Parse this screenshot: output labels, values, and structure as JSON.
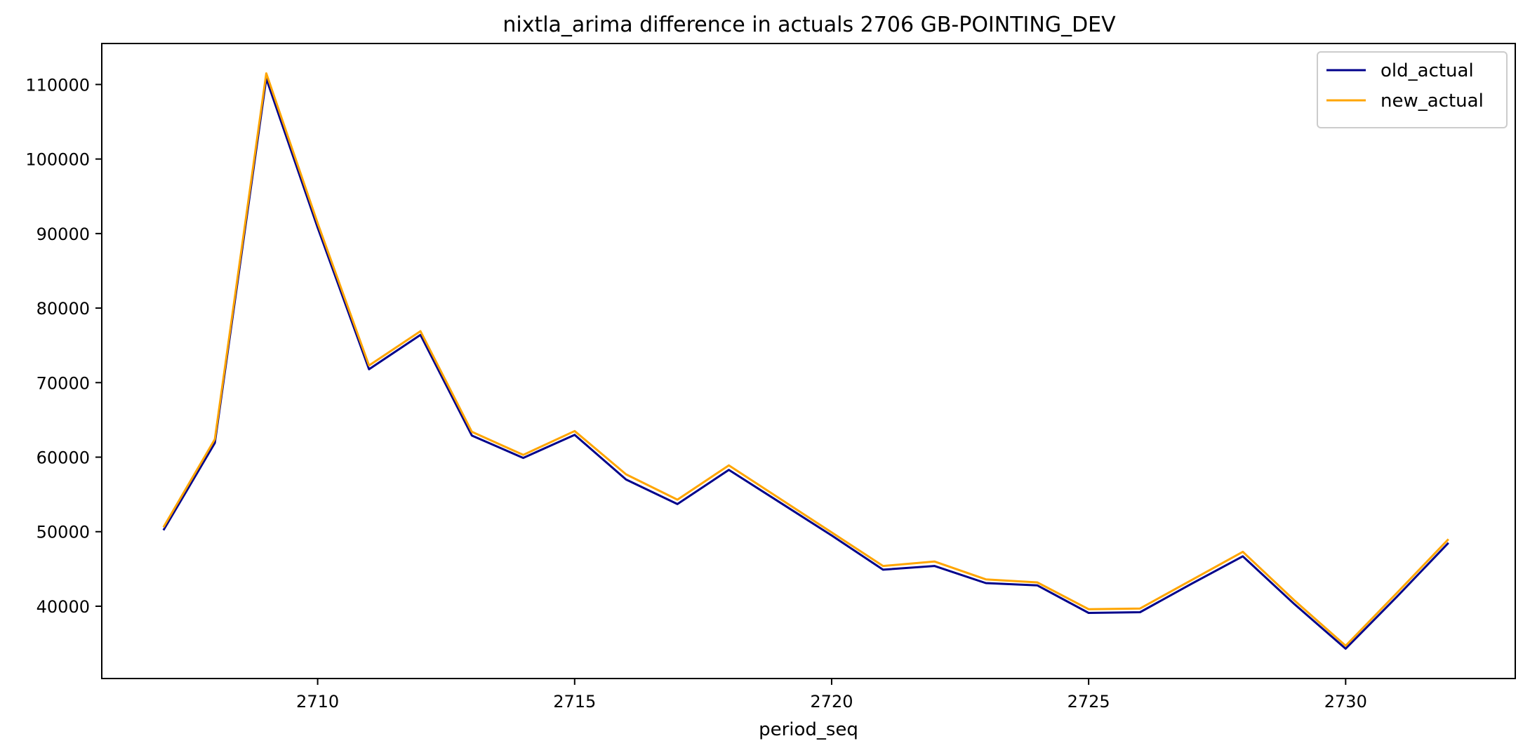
{
  "chart_data": {
    "type": "line",
    "title": "nixtla_arima difference in actuals 2706 GB-POINTING_DEV",
    "xlabel": "period_seq",
    "ylabel": "",
    "xlim": [
      2705.8,
      2733.3
    ],
    "ylim": [
      30300,
      115500
    ],
    "xticks": [
      2710,
      2715,
      2720,
      2725,
      2730
    ],
    "xtick_labels": [
      "2710",
      "2715",
      "2720",
      "2725",
      "2730"
    ],
    "yticks": [
      40000,
      50000,
      60000,
      70000,
      80000,
      90000,
      100000,
      110000
    ],
    "ytick_labels": [
      "40000",
      "50000",
      "60000",
      "70000",
      "80000",
      "90000",
      "100000",
      "110000"
    ],
    "grid": false,
    "legend_position": "upper right",
    "x": [
      2707,
      2708,
      2709,
      2710,
      2711,
      2712,
      2713,
      2714,
      2715,
      2716,
      2717,
      2718,
      2719,
      2720,
      2721,
      2722,
      2723,
      2724,
      2725,
      2726,
      2727,
      2728,
      2729,
      2730,
      2731,
      2732
    ],
    "series": [
      {
        "name": "old_actual",
        "color": "#00008B",
        "values": [
          50200,
          61900,
          110800,
          90800,
          71800,
          76400,
          62900,
          59900,
          63000,
          57000,
          53700,
          58300,
          53900,
          49500,
          44900,
          45400,
          43100,
          42800,
          39100,
          39200,
          43000,
          46700,
          40300,
          34300,
          41300,
          48500
        ]
      },
      {
        "name": "new_actual",
        "color": "#FFA500",
        "values": [
          50600,
          62400,
          111500,
          91400,
          72300,
          76900,
          63400,
          60300,
          63500,
          57700,
          54300,
          58900,
          54400,
          49900,
          45400,
          46000,
          43600,
          43200,
          39600,
          39700,
          43500,
          47300,
          40800,
          34700,
          41800,
          49000
        ]
      }
    ]
  }
}
